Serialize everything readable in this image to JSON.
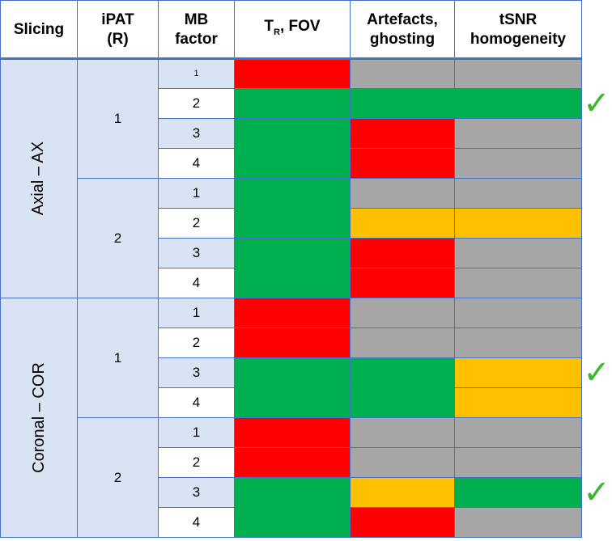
{
  "headers": {
    "slicing": "Slicing",
    "ipat": "iPAT",
    "ipat_sub": "(R)",
    "mb": "MB",
    "mb_sub": "factor",
    "tr_main": "T",
    "tr_sub": "R",
    "tr_rest": ", FOV",
    "artefacts": "Artefacts,",
    "artefacts_sub": "ghosting",
    "tsnr": "tSNR",
    "tsnr_sub": "homogeneity"
  },
  "colors": {
    "green": "#00b050",
    "red": "#ff0000",
    "grey": "#a6a6a6",
    "amber": "#ffc000",
    "border": "#4472c4",
    "light_blue": "#dae3f3",
    "check": "#3ab82e"
  },
  "check_symbol": "✓",
  "groups": [
    {
      "slicing": "Axial – AX",
      "ipat": [
        {
          "value": "1",
          "rows": [
            {
              "mb": "1",
              "tr": "red",
              "art": "grey",
              "tsnr": "grey",
              "check": false
            },
            {
              "mb": "2",
              "tr": "green",
              "art": "green",
              "tsnr": "green",
              "check": true
            },
            {
              "mb": "3",
              "tr": "green",
              "art": "red",
              "tsnr": "grey",
              "check": false
            },
            {
              "mb": "4",
              "tr": "green",
              "art": "red",
              "tsnr": "grey",
              "check": false
            }
          ]
        },
        {
          "value": "2",
          "rows": [
            {
              "mb": "1",
              "tr": "green",
              "art": "grey",
              "tsnr": "grey",
              "check": false
            },
            {
              "mb": "2",
              "tr": "green",
              "art": "amber",
              "tsnr": "amber",
              "check": false
            },
            {
              "mb": "3",
              "tr": "green",
              "art": "red",
              "tsnr": "grey",
              "check": false
            },
            {
              "mb": "4",
              "tr": "green",
              "art": "red",
              "tsnr": "grey",
              "check": false
            }
          ]
        }
      ]
    },
    {
      "slicing": "Coronal – COR",
      "ipat": [
        {
          "value": "1",
          "rows": [
            {
              "mb": "1",
              "tr": "red",
              "art": "grey",
              "tsnr": "grey",
              "check": false
            },
            {
              "mb": "2",
              "tr": "red",
              "art": "grey",
              "tsnr": "grey",
              "check": false
            },
            {
              "mb": "3",
              "tr": "green",
              "art": "green",
              "tsnr": "amber",
              "check": true
            },
            {
              "mb": "4",
              "tr": "green",
              "art": "green",
              "tsnr": "amber",
              "check": false
            }
          ]
        },
        {
          "value": "2",
          "rows": [
            {
              "mb": "1",
              "tr": "red",
              "art": "grey",
              "tsnr": "grey",
              "check": false
            },
            {
              "mb": "2",
              "tr": "red",
              "art": "grey",
              "tsnr": "grey",
              "check": false
            },
            {
              "mb": "3",
              "tr": "green",
              "art": "amber",
              "tsnr": "green",
              "check": true
            },
            {
              "mb": "4",
              "tr": "green",
              "art": "red",
              "tsnr": "grey",
              "check": false
            }
          ]
        }
      ]
    }
  ]
}
